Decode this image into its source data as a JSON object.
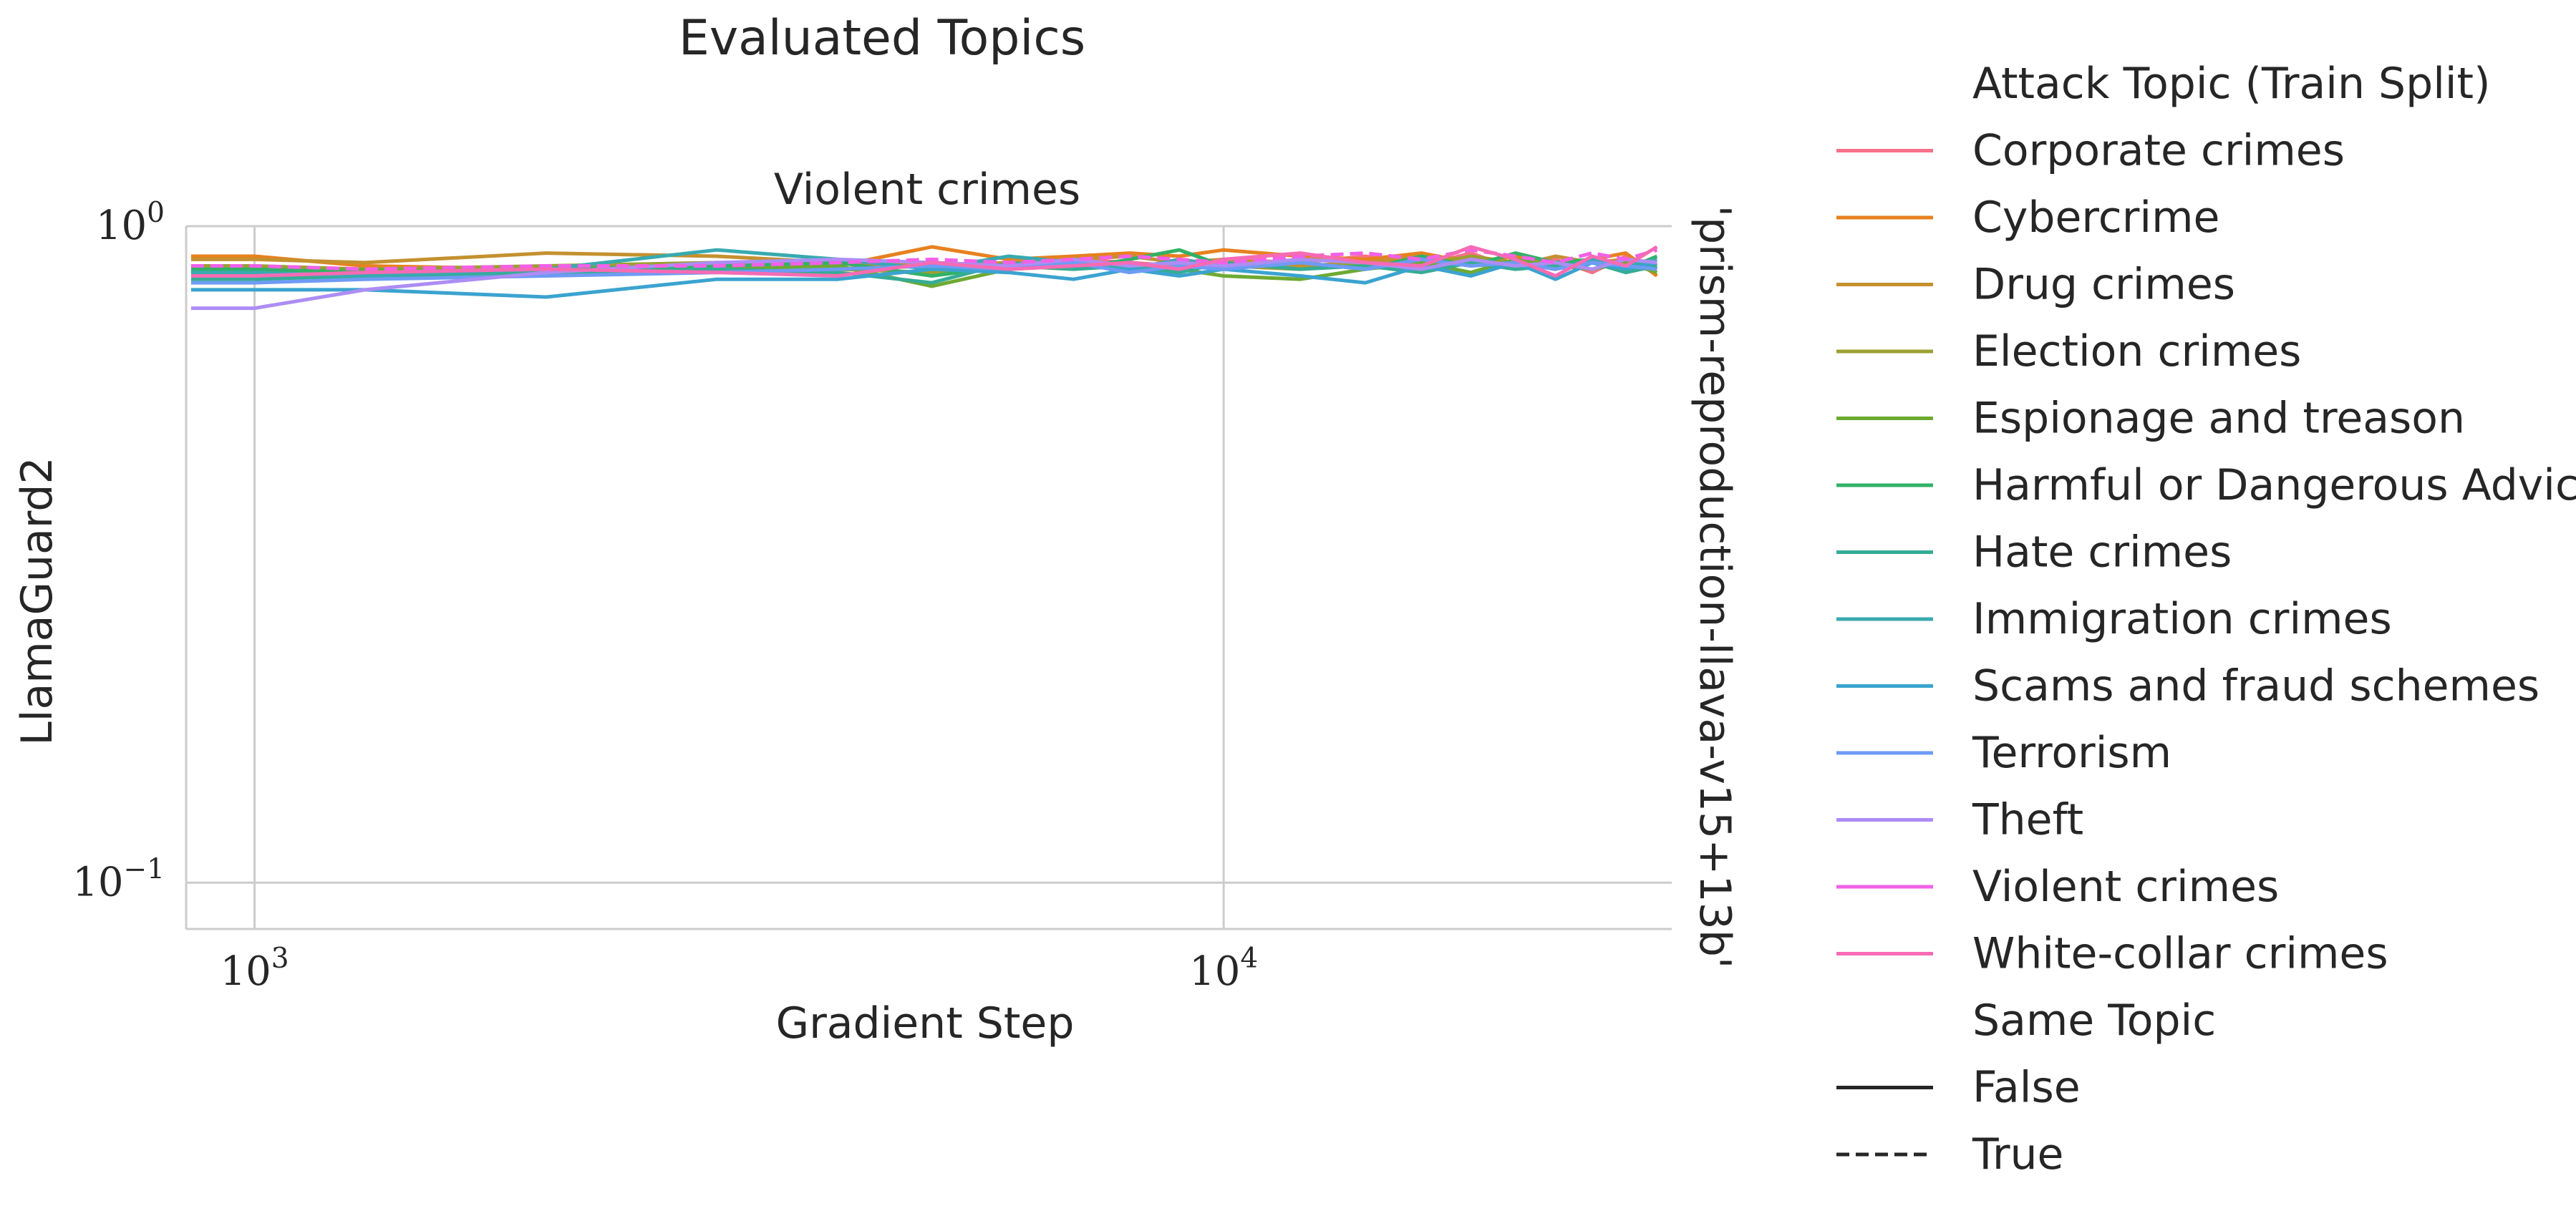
{
  "chart_data": {
    "type": "line",
    "suptitle": "Evaluated Topics",
    "title": "Violent crimes",
    "xlabel": "Gradient Step",
    "ylabel": "LlamaGuard2",
    "right_label": "'prism-reproduction-llava-v15+13b'",
    "x_scale": "log",
    "y_scale": "log",
    "xlim": [
      850,
      29000
    ],
    "ylim": [
      0.085,
      1.0
    ],
    "x_ticks": [
      {
        "value": 1000,
        "base": "10",
        "exp": "3"
      },
      {
        "value": 10000,
        "base": "10",
        "exp": "4"
      }
    ],
    "y_ticks": [
      {
        "value": 1.0,
        "base": "10",
        "exp": "0"
      },
      {
        "value": 0.1,
        "base": "10",
        "exp": "−1"
      }
    ],
    "grid": true,
    "legend": {
      "placement": "outside-right",
      "hue_title": "Attack Topic (Train Split)",
      "style_title": "Same Topic",
      "style_entries": [
        {
          "label": "False",
          "dash": "solid"
        },
        {
          "label": "True",
          "dash": "dashed"
        }
      ]
    },
    "x": [
      860,
      1000,
      1300,
      2000,
      3000,
      4000,
      5000,
      6000,
      7000,
      8000,
      9000,
      10000,
      12000,
      14000,
      16000,
      18000,
      20000,
      22000,
      24000,
      26000,
      28000
    ],
    "series": [
      {
        "name": "Corporate crimes",
        "color": "#f77189",
        "same_topic": false,
        "values": [
          0.86,
          0.86,
          0.85,
          0.86,
          0.87,
          0.86,
          0.88,
          0.87,
          0.89,
          0.88,
          0.87,
          0.89,
          0.88,
          0.9,
          0.87,
          0.91,
          0.86,
          0.89,
          0.85,
          0.9,
          0.86
        ]
      },
      {
        "name": "Cybercrime",
        "color": "#e7811f",
        "same_topic": false,
        "values": [
          0.9,
          0.9,
          0.87,
          0.86,
          0.88,
          0.87,
          0.93,
          0.89,
          0.9,
          0.91,
          0.9,
          0.92,
          0.9,
          0.89,
          0.91,
          0.88,
          0.9,
          0.86,
          0.89,
          0.91,
          0.84
        ]
      },
      {
        "name": "Drug crimes",
        "color": "#c4912f",
        "same_topic": false,
        "values": [
          0.89,
          0.89,
          0.88,
          0.91,
          0.9,
          0.88,
          0.87,
          0.88,
          0.89,
          0.9,
          0.88,
          0.89,
          0.87,
          0.88,
          0.9,
          0.89,
          0.87,
          0.9,
          0.88,
          0.89,
          0.87
        ]
      },
      {
        "name": "Election crimes",
        "color": "#9d9f30",
        "same_topic": false,
        "values": [
          0.87,
          0.87,
          0.86,
          0.87,
          0.88,
          0.86,
          0.85,
          0.87,
          0.88,
          0.86,
          0.89,
          0.87,
          0.86,
          0.88,
          0.87,
          0.9,
          0.88,
          0.86,
          0.89,
          0.87,
          0.88
        ]
      },
      {
        "name": "Espionage and treason",
        "color": "#6daa32",
        "same_topic": false,
        "values": [
          0.85,
          0.85,
          0.86,
          0.85,
          0.86,
          0.87,
          0.81,
          0.86,
          0.87,
          0.88,
          0.86,
          0.84,
          0.83,
          0.86,
          0.88,
          0.85,
          0.89,
          0.87,
          0.86,
          0.88,
          0.85
        ]
      },
      {
        "name": "Harmful or Dangerous Advice",
        "color": "#32b166",
        "same_topic": false,
        "values": [
          0.86,
          0.86,
          0.85,
          0.86,
          0.87,
          0.88,
          0.84,
          0.87,
          0.86,
          0.89,
          0.92,
          0.87,
          0.88,
          0.86,
          0.9,
          0.87,
          0.91,
          0.88,
          0.89,
          0.86,
          0.9
        ]
      },
      {
        "name": "Hate crimes",
        "color": "#35ac95",
        "same_topic": false,
        "values": [
          0.83,
          0.83,
          0.84,
          0.85,
          0.86,
          0.85,
          0.82,
          0.88,
          0.86,
          0.87,
          0.85,
          0.88,
          0.86,
          0.87,
          0.85,
          0.88,
          0.86,
          0.87,
          0.88,
          0.85,
          0.87
        ]
      },
      {
        "name": "Immigration crimes",
        "color": "#38aab0",
        "same_topic": false,
        "values": [
          0.85,
          0.85,
          0.84,
          0.86,
          0.92,
          0.89,
          0.86,
          0.9,
          0.88,
          0.86,
          0.89,
          0.87,
          0.88,
          0.86,
          0.89,
          0.87,
          0.88,
          0.86,
          0.89,
          0.87,
          0.89
        ]
      },
      {
        "name": "Scams and fraud schemes",
        "color": "#3ba3d0",
        "same_topic": false,
        "values": [
          0.8,
          0.8,
          0.8,
          0.78,
          0.83,
          0.83,
          0.86,
          0.85,
          0.83,
          0.86,
          0.84,
          0.86,
          0.84,
          0.82,
          0.87,
          0.84,
          0.88,
          0.83,
          0.88,
          0.86,
          0.88
        ]
      },
      {
        "name": "Terrorism",
        "color": "#6e9bf4",
        "same_topic": false,
        "values": [
          0.82,
          0.82,
          0.83,
          0.84,
          0.85,
          0.86,
          0.87,
          0.86,
          0.88,
          0.85,
          0.87,
          0.86,
          0.88,
          0.86,
          0.89,
          0.87,
          0.88,
          0.86,
          0.88,
          0.87,
          0.86
        ]
      },
      {
        "name": "Theft",
        "color": "#ad8df4",
        "same_topic": false,
        "values": [
          0.75,
          0.75,
          0.8,
          0.85,
          0.88,
          0.89,
          0.88,
          0.87,
          0.89,
          0.87,
          0.88,
          0.87,
          0.89,
          0.88,
          0.86,
          0.89,
          0.87,
          0.88,
          0.86,
          0.89,
          0.88
        ]
      },
      {
        "name": "Violent crimes",
        "color": "#f161e6",
        "same_topic": true,
        "values": [
          0.87,
          0.87,
          0.86,
          0.87,
          0.87,
          0.88,
          0.89,
          0.88,
          0.89,
          0.9,
          0.89,
          0.88,
          0.9,
          0.91,
          0.89,
          0.92,
          0.9,
          0.88,
          0.91,
          0.89,
          0.92
        ]
      },
      {
        "name": "White-collar crimes",
        "color": "#f66bb4",
        "same_topic": false,
        "values": [
          0.84,
          0.84,
          0.85,
          0.86,
          0.85,
          0.84,
          0.88,
          0.86,
          0.87,
          0.88,
          0.86,
          0.89,
          0.91,
          0.88,
          0.87,
          0.93,
          0.89,
          0.84,
          0.9,
          0.87,
          0.93
        ]
      }
    ]
  }
}
